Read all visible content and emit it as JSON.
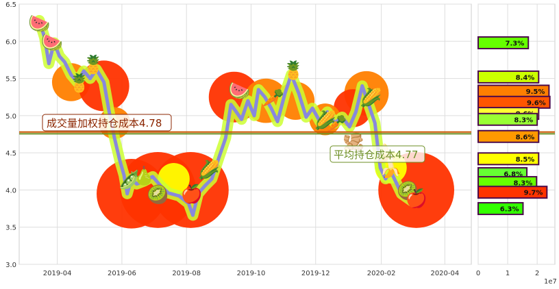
{
  "chart_data": [
    {
      "type": "line",
      "title": "",
      "xlabel": "",
      "ylabel": "",
      "ylim": [
        3.0,
        6.5
      ],
      "y_ticks": [
        "3.0",
        "3.5",
        "4.0",
        "4.5",
        "5.0",
        "5.5",
        "6.0",
        "6.5"
      ],
      "x_ticks": [
        "2019-04",
        "2019-06",
        "2019-08",
        "2019-10",
        "2019-12",
        "2020-02",
        "2020-04"
      ],
      "grid": true,
      "series": [
        {
          "values": [
            {
              "x": "2019-03-15",
              "y": 6.28
            },
            {
              "x": "2019-03-20",
              "y": 6.05
            },
            {
              "x": "2019-03-24",
              "y": 5.7
            },
            {
              "x": "2019-03-29",
              "y": 5.98
            },
            {
              "x": "2019-04-03",
              "y": 5.8
            },
            {
              "x": "2019-04-08",
              "y": 5.72
            },
            {
              "x": "2019-04-14",
              "y": 5.55
            },
            {
              "x": "2019-04-20",
              "y": 5.45
            },
            {
              "x": "2019-04-26",
              "y": 5.6
            },
            {
              "x": "2019-05-02",
              "y": 5.5
            },
            {
              "x": "2019-05-08",
              "y": 5.62
            },
            {
              "x": "2019-05-15",
              "y": 5.45
            },
            {
              "x": "2019-05-20",
              "y": 5.05
            },
            {
              "x": "2019-05-25",
              "y": 4.7
            },
            {
              "x": "2019-05-30",
              "y": 4.4
            },
            {
              "x": "2019-06-03",
              "y": 4.2
            },
            {
              "x": "2019-06-06",
              "y": 3.95
            },
            {
              "x": "2019-06-10",
              "y": 4.15
            },
            {
              "x": "2019-06-15",
              "y": 4.08
            },
            {
              "x": "2019-06-22",
              "y": 4.12
            },
            {
              "x": "2019-06-30",
              "y": 4.18
            },
            {
              "x": "2019-07-08",
              "y": 4.05
            },
            {
              "x": "2019-07-15",
              "y": 3.96
            },
            {
              "x": "2019-07-25",
              "y": 3.92
            },
            {
              "x": "2019-08-03",
              "y": 3.82
            },
            {
              "x": "2019-08-07",
              "y": 3.66
            },
            {
              "x": "2019-08-12",
              "y": 3.95
            },
            {
              "x": "2019-08-18",
              "y": 4.05
            },
            {
              "x": "2019-08-25",
              "y": 4.15
            },
            {
              "x": "2019-09-01",
              "y": 4.45
            },
            {
              "x": "2019-09-07",
              "y": 4.7
            },
            {
              "x": "2019-09-12",
              "y": 5.15
            },
            {
              "x": "2019-09-17",
              "y": 5.05
            },
            {
              "x": "2019-09-22",
              "y": 4.95
            },
            {
              "x": "2019-09-28",
              "y": 5.2
            },
            {
              "x": "2019-10-04",
              "y": 5.0
            },
            {
              "x": "2019-10-08",
              "y": 5.35
            },
            {
              "x": "2019-10-14",
              "y": 5.25
            },
            {
              "x": "2019-10-20",
              "y": 5.1
            },
            {
              "x": "2019-10-26",
              "y": 4.92
            },
            {
              "x": "2019-11-02",
              "y": 5.3
            },
            {
              "x": "2019-11-08",
              "y": 5.55
            },
            {
              "x": "2019-11-15",
              "y": 5.3
            },
            {
              "x": "2019-11-22",
              "y": 4.98
            },
            {
              "x": "2019-11-28",
              "y": 5.1
            },
            {
              "x": "2019-12-05",
              "y": 4.92
            },
            {
              "x": "2019-12-12",
              "y": 5.05
            },
            {
              "x": "2019-12-19",
              "y": 4.9
            },
            {
              "x": "2019-12-26",
              "y": 4.98
            },
            {
              "x": "2020-01-02",
              "y": 4.85
            },
            {
              "x": "2020-01-08",
              "y": 5.05
            },
            {
              "x": "2020-01-14",
              "y": 5.4
            },
            {
              "x": "2020-01-20",
              "y": 5.15
            },
            {
              "x": "2020-01-26",
              "y": 4.9
            },
            {
              "x": "2020-01-31",
              "y": 4.3
            },
            {
              "x": "2020-02-05",
              "y": 4.15
            },
            {
              "x": "2020-02-10",
              "y": 4.25
            },
            {
              "x": "2020-02-15",
              "y": 4.1
            },
            {
              "x": "2020-02-20",
              "y": 3.95
            },
            {
              "x": "2020-02-25",
              "y": 3.9
            },
            {
              "x": "2020-03-01",
              "y": 3.85
            }
          ]
        }
      ],
      "volume_blobs": [
        {
          "x": "2019-04-14",
          "y": 5.45,
          "size": 3,
          "color": "#ff7f00"
        },
        {
          "x": "2019-05-15",
          "y": 5.4,
          "size": 5,
          "color": "#ff3300"
        },
        {
          "x": "2019-06-10",
          "y": 3.95,
          "size": 8,
          "color": "#ff3300"
        },
        {
          "x": "2019-07-05",
          "y": 4.0,
          "size": 9,
          "color": "#ff3300"
        },
        {
          "x": "2019-08-05",
          "y": 4.0,
          "size": 9,
          "color": "#ff3300"
        },
        {
          "x": "2019-09-15",
          "y": 5.25,
          "size": 5,
          "color": "#ff3300"
        },
        {
          "x": "2019-10-15",
          "y": 5.2,
          "size": 4,
          "color": "#ff7f00"
        },
        {
          "x": "2019-11-12",
          "y": 5.2,
          "size": 3,
          "color": "#ff7f00"
        },
        {
          "x": "2020-01-18",
          "y": 5.3,
          "size": 4,
          "color": "#ff7f00"
        },
        {
          "x": "2020-01-05",
          "y": 5.1,
          "size": 3,
          "color": "#ff3300"
        },
        {
          "x": "2020-03-05",
          "y": 4.0,
          "size": 9,
          "color": "#ff3300"
        },
        {
          "x": "2019-05-25",
          "y": 4.9,
          "size": 2,
          "color": "#ff7f00"
        },
        {
          "x": "2019-07-20",
          "y": 4.15,
          "size": 2,
          "color": "#ffff00"
        },
        {
          "x": "2019-12-10",
          "y": 4.95,
          "size": 2,
          "color": "#ff7f00"
        },
        {
          "x": "2020-02-10",
          "y": 4.3,
          "size": 2,
          "color": "#ffff00"
        }
      ],
      "fruit_markers": [
        {
          "x": "2019-03-15",
          "y": 6.25,
          "icon": "watermelon-icon",
          "glyph": "🍉"
        },
        {
          "x": "2019-03-27",
          "y": 6.0,
          "icon": "watermelon-icon",
          "glyph": "🍉"
        },
        {
          "x": "2019-05-05",
          "y": 5.7,
          "icon": "pineapple-icon",
          "glyph": "🍍"
        },
        {
          "x": "2019-04-22",
          "y": 5.45,
          "icon": "pineapple-icon",
          "glyph": "🍍"
        },
        {
          "x": "2019-06-08",
          "y": 4.15,
          "icon": "pea-pod-icon",
          "glyph": "🫛"
        },
        {
          "x": "2019-06-22",
          "y": 4.2,
          "icon": "pear-icon",
          "glyph": "🍐"
        },
        {
          "x": "2019-07-05",
          "y": 3.95,
          "icon": "kiwi-icon",
          "glyph": "🥝"
        },
        {
          "x": "2019-08-06",
          "y": 3.96,
          "icon": "apple-icon",
          "glyph": "🍎"
        },
        {
          "x": "2019-08-22",
          "y": 4.28,
          "icon": "corn-icon",
          "glyph": "🌽"
        },
        {
          "x": "2019-09-20",
          "y": 5.35,
          "icon": "watermelon-slice-icon",
          "glyph": "🍉"
        },
        {
          "x": "2019-10-22",
          "y": 5.25,
          "icon": "carrot-icon",
          "glyph": "🥕"
        },
        {
          "x": "2019-11-10",
          "y": 5.62,
          "icon": "pineapple-icon",
          "glyph": "🍍"
        },
        {
          "x": "2019-12-10",
          "y": 4.95,
          "icon": "corn-icon",
          "glyph": "🌽"
        },
        {
          "x": "2019-12-20",
          "y": 4.9,
          "icon": "carrot-icon",
          "glyph": "🥕"
        },
        {
          "x": "2020-01-06",
          "y": 4.65,
          "icon": "radish-icon",
          "glyph": "🫚"
        },
        {
          "x": "2020-01-22",
          "y": 5.25,
          "icon": "corn-icon",
          "glyph": "🌽"
        },
        {
          "x": "2020-02-05",
          "y": 4.5,
          "icon": "banana-icon",
          "glyph": "🍌"
        },
        {
          "x": "2020-02-10",
          "y": 4.3,
          "icon": "banana-icon",
          "glyph": "🍌"
        },
        {
          "x": "2020-02-26",
          "y": 4.0,
          "icon": "kiwi-icon",
          "glyph": "🥝"
        },
        {
          "x": "2020-03-05",
          "y": 3.9,
          "icon": "apple-icon",
          "glyph": "🍎"
        }
      ],
      "reference_lines": [
        {
          "y": 4.78,
          "label": "成交量加权持仓成本4.78",
          "color": "#8b2500",
          "line_color": "#cc5500"
        },
        {
          "y": 4.77,
          "label": "平均持仓成本4.77",
          "color": "#6b8e23",
          "line_color": "#6b8e23"
        }
      ]
    },
    {
      "type": "bar",
      "orientation": "horizontal",
      "title": "",
      "xlabel": "",
      "ylabel": "",
      "ylim": [
        3.0,
        6.5
      ],
      "xlim": [
        0,
        2.6
      ],
      "x_ticks": [
        "0",
        "1",
        "2"
      ],
      "x_scale_label": "1e7",
      "grid": true,
      "bars": [
        {
          "price": 5.98,
          "value": 1.7,
          "label": "7.3%",
          "color": "#66ff00"
        },
        {
          "price": 5.52,
          "value": 2.05,
          "label": "8.4%",
          "color": "#ccff00"
        },
        {
          "price": 5.33,
          "value": 2.4,
          "label": "9.5%",
          "color": "#ff7f00"
        },
        {
          "price": 5.18,
          "value": 2.43,
          "label": "9.6%",
          "color": "#ff5500"
        },
        {
          "price": 5.03,
          "value": 2.05,
          "label": "8.6%",
          "color": "#ffff33"
        },
        {
          "price": 4.95,
          "value": 2.0,
          "label": "8.3%",
          "color": "#99ff33"
        },
        {
          "price": 4.72,
          "value": 2.05,
          "label": "8.6%",
          "color": "#ff9900"
        },
        {
          "price": 4.42,
          "value": 2.05,
          "label": "8.5%",
          "color": "#ffff00"
        },
        {
          "price": 4.22,
          "value": 1.65,
          "label": "6.8%",
          "color": "#66ff33"
        },
        {
          "price": 4.1,
          "value": 1.98,
          "label": "8.3%",
          "color": "#66ff00"
        },
        {
          "price": 3.97,
          "value": 2.33,
          "label": "9.7%",
          "color": "#ff3300"
        },
        {
          "price": 3.75,
          "value": 1.52,
          "label": "6.3%",
          "color": "#33ff00"
        }
      ],
      "reference_lines": [
        {
          "y": 4.78,
          "color": "#cc5500"
        },
        {
          "y": 4.77,
          "color": "#6b8e23"
        }
      ]
    }
  ]
}
